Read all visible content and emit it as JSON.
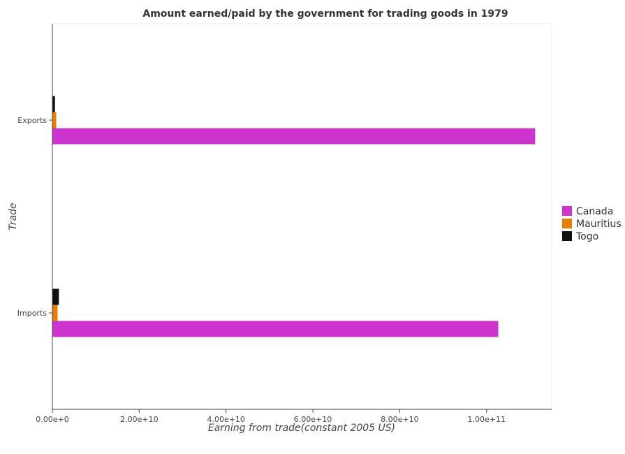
{
  "chart_data": {
    "type": "bar",
    "orientation": "horizontal",
    "title": "Amount earned/paid by the government for trading goods in 1979",
    "xlabel": "Earning from trade(constant 2005 US)",
    "ylabel": "Trade",
    "categories": [
      "Exports",
      "Imports"
    ],
    "series": [
      {
        "name": "Canada",
        "color": "#cc33cc",
        "values": [
          111200000000,
          102700000000
        ]
      },
      {
        "name": "Mauritius",
        "color": "#e67e00",
        "values": [
          900000000,
          1200000000
        ]
      },
      {
        "name": "Togo",
        "color": "#111111",
        "values": [
          600000000,
          1500000000
        ]
      }
    ],
    "xlim": [
      0,
      115000000000
    ],
    "xticks": [
      0,
      20000000000,
      40000000000,
      60000000000,
      80000000000,
      100000000000
    ],
    "xtick_labels": [
      "0.00e+0",
      "2.00e+10",
      "4.00e+10",
      "6.00e+10",
      "8.00e+10",
      "1.00e+11"
    ],
    "grid": false,
    "legend_position": "right"
  }
}
